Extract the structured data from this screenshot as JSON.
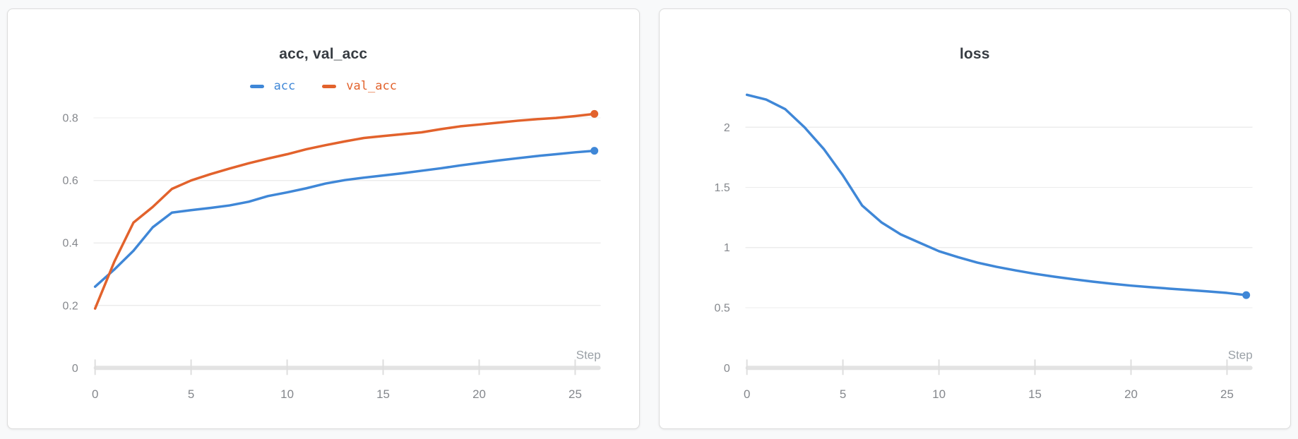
{
  "chart_data": [
    {
      "type": "line",
      "title": "acc, val_acc",
      "xlabel": "Step",
      "grid": true,
      "legend_position": "top-center",
      "xlim": [
        0,
        26
      ],
      "ylim": [
        0,
        0.905
      ],
      "x_ticks": [
        0,
        5,
        10,
        15,
        20,
        25
      ],
      "x_tick_labels": [
        "0",
        "5",
        "10",
        "15",
        "20",
        "25"
      ],
      "y_ticks": [
        0,
        0.2,
        0.4,
        0.6,
        0.8
      ],
      "y_tick_labels": [
        "0",
        "0.2",
        "0.4",
        "0.6",
        "0.8"
      ],
      "x": [
        0,
        1,
        2,
        3,
        4,
        5,
        6,
        7,
        8,
        9,
        10,
        11,
        12,
        13,
        14,
        15,
        16,
        17,
        18,
        19,
        20,
        21,
        22,
        23,
        24,
        25,
        26
      ],
      "series": [
        {
          "name": "acc",
          "color": "#3f87d7",
          "values": [
            0.26,
            0.315,
            0.375,
            0.45,
            0.497,
            0.505,
            0.512,
            0.52,
            0.532,
            0.55,
            0.562,
            0.575,
            0.59,
            0.601,
            0.609,
            0.616,
            0.623,
            0.631,
            0.639,
            0.648,
            0.656,
            0.664,
            0.671,
            0.678,
            0.684,
            0.69,
            0.695
          ]
        },
        {
          "name": "val_acc",
          "color": "#e2622c",
          "values": [
            0.19,
            0.34,
            0.465,
            0.515,
            0.573,
            0.6,
            0.62,
            0.638,
            0.655,
            0.67,
            0.684,
            0.7,
            0.713,
            0.725,
            0.736,
            0.742,
            0.748,
            0.754,
            0.764,
            0.773,
            0.779,
            0.785,
            0.791,
            0.796,
            0.8,
            0.806,
            0.813
          ]
        }
      ]
    },
    {
      "type": "line",
      "title": "loss",
      "xlabel": "Step",
      "grid": true,
      "legend_position": "none",
      "xlim": [
        0,
        26
      ],
      "ylim": [
        0,
        2.35
      ],
      "x_ticks": [
        0,
        5,
        10,
        15,
        20,
        25
      ],
      "x_tick_labels": [
        "0",
        "5",
        "10",
        "15",
        "20",
        "25"
      ],
      "y_ticks": [
        0,
        0.5,
        1,
        1.5,
        2
      ],
      "y_tick_labels": [
        "0",
        "0.5",
        "1",
        "1.5",
        "2"
      ],
      "x": [
        0,
        1,
        2,
        3,
        4,
        5,
        6,
        7,
        8,
        9,
        10,
        11,
        12,
        13,
        14,
        15,
        16,
        17,
        18,
        19,
        20,
        21,
        22,
        23,
        24,
        25,
        26
      ],
      "series": [
        {
          "name": "loss",
          "color": "#3f87d7",
          "values": [
            2.27,
            2.23,
            2.15,
            2.0,
            1.82,
            1.6,
            1.35,
            1.21,
            1.11,
            1.04,
            0.97,
            0.92,
            0.875,
            0.84,
            0.81,
            0.782,
            0.758,
            0.737,
            0.717,
            0.7,
            0.684,
            0.671,
            0.659,
            0.648,
            0.636,
            0.623,
            0.605
          ]
        }
      ]
    }
  ],
  "style_colors": {
    "page_background": "#f8f9fa",
    "card_background": "#ffffff",
    "card_border": "#dcdcdc",
    "gridline": "#ececec",
    "axis_band": "#e3e3e3",
    "axis_tick": "#dedede",
    "tick_label": "#84878c",
    "axis_label": "#9aa0a6",
    "title": "#373c42"
  }
}
